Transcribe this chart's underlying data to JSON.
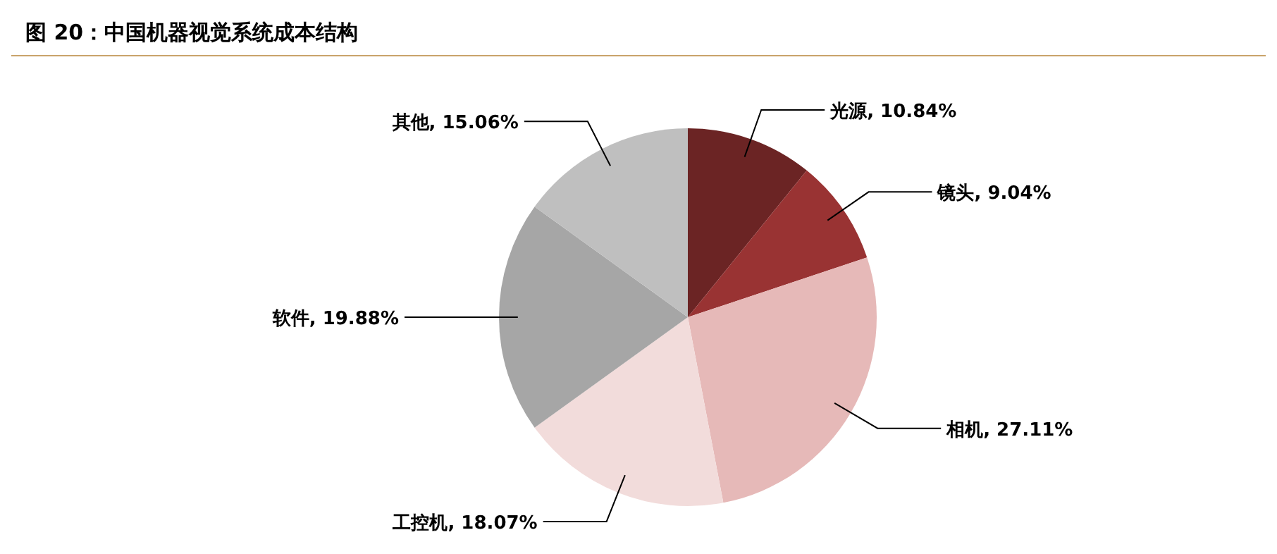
{
  "chart_data": {
    "type": "pie",
    "title": "图 20：中国机器视觉系统成本结构",
    "categories": [
      "光源",
      "镜头",
      "相机",
      "工控机",
      "软件",
      "其他"
    ],
    "values": [
      10.84,
      9.04,
      27.11,
      18.07,
      19.88,
      15.06
    ],
    "value_labels": [
      "10.84%",
      "9.04%",
      "27.11%",
      "18.07%",
      "19.88%",
      "15.06%"
    ],
    "colors": [
      "#6b2424",
      "#993333",
      "#e6b9b8",
      "#f2dcdb",
      "#a6a6a6",
      "#bfbfbf"
    ],
    "legend": false
  }
}
